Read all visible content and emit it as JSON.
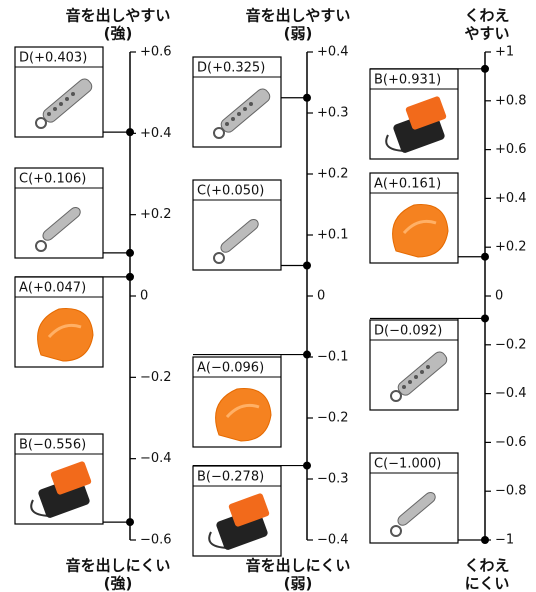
{
  "chart_data": [
    {
      "type": "scale",
      "title": [
        "音を出しやすい",
        "(強)"
      ],
      "bottom_label": [
        "音を出しにくい",
        "(強)"
      ],
      "ylim": [
        -0.6,
        0.6
      ],
      "yticks": [
        {
          "value": 0.6,
          "label": "+0.6"
        },
        {
          "value": 0.4,
          "label": "+0.4"
        },
        {
          "value": 0.2,
          "label": "+0.2"
        },
        0,
        {
          "value": -0.2,
          "label": "−0.2"
        },
        {
          "value": -0.4,
          "label": "−0.4"
        },
        {
          "value": -0.6,
          "label": "−0.6"
        }
      ],
      "values": [
        0.403,
        0.106,
        0.047,
        -0.556
      ],
      "value_labels": [
        "D(+0.403)",
        "C(+0.106)",
        "A(+0.047)",
        "B(−0.556)"
      ]
    },
    {
      "type": "scale",
      "title": [
        "音を出しやすい",
        "(弱)"
      ],
      "bottom_label": [
        "音を出しにくい",
        "(弱)"
      ],
      "ylim": [
        -0.4,
        0.4
      ],
      "yticks": [
        {
          "value": 0.4,
          "label": "+0.4"
        },
        {
          "value": 0.3,
          "label": "+0.3"
        },
        {
          "value": 0.2,
          "label": "+0.2"
        },
        {
          "value": 0.1,
          "label": "+0.1"
        },
        0,
        {
          "value": -0.1,
          "label": "−0.1"
        },
        {
          "value": -0.2,
          "label": "−0.2"
        },
        {
          "value": -0.3,
          "label": "−0.3"
        },
        {
          "value": -0.4,
          "label": "−0.4"
        }
      ],
      "values": [
        0.325,
        0.05,
        -0.096,
        -0.278
      ],
      "value_labels": [
        "D(+0.325)",
        "C(+0.050)",
        "A(−0.096)",
        "B(−0.278)"
      ]
    },
    {
      "type": "scale",
      "title": [
        "くわえ",
        "やすい"
      ],
      "bottom_label": [
        "くわえ",
        "にくい"
      ],
      "ylim": [
        -1,
        1
      ],
      "yticks": [
        {
          "value": 1,
          "label": "+1"
        },
        {
          "value": 0.8,
          "label": "+0.8"
        },
        {
          "value": 0.6,
          "label": "+0.6"
        },
        {
          "value": 0.4,
          "label": "+0.4"
        },
        {
          "value": 0.2,
          "label": "+0.2"
        },
        0,
        {
          "value": -0.2,
          "label": "−0.2"
        },
        {
          "value": -0.4,
          "label": "−0.4"
        },
        {
          "value": -0.6,
          "label": "−0.6"
        },
        {
          "value": -0.8,
          "label": "−0.8"
        },
        {
          "value": -1,
          "label": "−1"
        }
      ],
      "values": [
        0.931,
        0.161,
        -0.092,
        -1
      ],
      "value_labels": [
        "B(+0.931)",
        "A(+0.161)",
        "D(−0.092)",
        "C(−1.000)"
      ]
    }
  ]
}
